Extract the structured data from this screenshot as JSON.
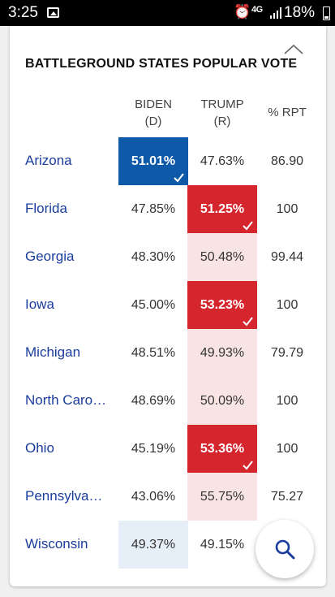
{
  "status_bar": {
    "time": "3:25",
    "network": "4G",
    "battery": "18%",
    "icons": [
      "gallery-icon",
      "alarm-icon",
      "signal-icon",
      "battery-icon"
    ]
  },
  "card": {
    "title": "BATTLEGROUND STATES POPULAR VOTE",
    "collapse_icon": "chevron-up-icon"
  },
  "columns": {
    "biden_name": "BIDEN",
    "biden_party": "(D)",
    "trump_name": "TRUMP",
    "trump_party": "(R)",
    "reported": "% RPT"
  },
  "rows": [
    {
      "state": "Arizona",
      "biden": "51.01%",
      "trump": "47.63%",
      "rpt": "86.90"
    },
    {
      "state": "Florida",
      "biden": "47.85%",
      "trump": "51.25%",
      "rpt": "100"
    },
    {
      "state": "Georgia",
      "biden": "48.30%",
      "trump": "50.48%",
      "rpt": "99.44"
    },
    {
      "state": "Iowa",
      "biden": "45.00%",
      "trump": "53.23%",
      "rpt": "100"
    },
    {
      "state": "Michigan",
      "biden": "48.51%",
      "trump": "49.93%",
      "rpt": "79.79"
    },
    {
      "state": "North Caro…",
      "biden": "48.69%",
      "trump": "50.09%",
      "rpt": "100"
    },
    {
      "state": "Ohio",
      "biden": "45.19%",
      "trump": "53.36%",
      "rpt": "100"
    },
    {
      "state": "Pennsylva…",
      "biden": "43.06%",
      "trump": "55.75%",
      "rpt": "75.27"
    },
    {
      "state": "Wisconsin",
      "biden": "49.37%",
      "trump": "49.15%",
      "rpt": ""
    }
  ],
  "colors": {
    "dem_win": "#0f5aa8",
    "rep_win": "#d5262e",
    "dem_lead": "#e6eff8",
    "rep_lead": "#f9e4e4",
    "state_link": "#1a3d9c"
  },
  "search_button_icon": "search-icon"
}
